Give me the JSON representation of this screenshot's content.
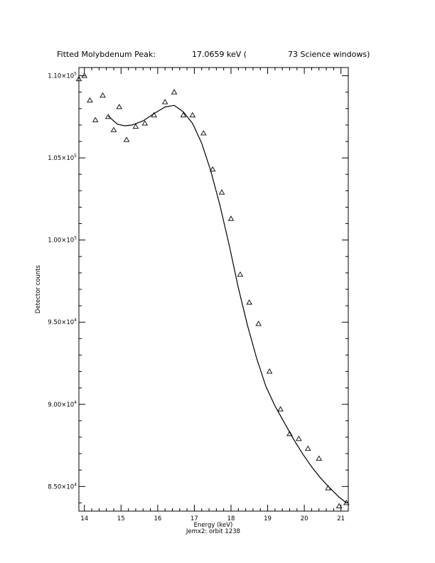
{
  "header": {
    "title_prefix": "Fitted Molybdenum Peak:",
    "title_energy": "17.0659 keV (",
    "title_windows": "73 Science windows)"
  },
  "footer": {
    "subtitle": "Jemx2: orbit 1238"
  },
  "chart_data": {
    "type": "scatter",
    "title": "Fitted Molybdenum Peak:  17.0659 keV (  73 Science windows)",
    "subtitle": "Jemx2: orbit 1238",
    "xlabel": "Energy (keV)",
    "ylabel": "Detector counts",
    "xlim": [
      13.85,
      21.2
    ],
    "ylim": [
      83500,
      110500
    ],
    "x_ticks": [
      14,
      15,
      16,
      17,
      18,
      19,
      20,
      21
    ],
    "x_tick_labels": [
      "14",
      "15",
      "16",
      "17",
      "18",
      "19",
      "20",
      "21"
    ],
    "y_ticks": [
      {
        "value": 85000,
        "mant": "8.50×10",
        "exp": "4"
      },
      {
        "value": 90000,
        "mant": "9.00×10",
        "exp": "4"
      },
      {
        "value": 95000,
        "mant": "9.50×10",
        "exp": "4"
      },
      {
        "value": 100000,
        "mant": "1.00×10",
        "exp": "5"
      },
      {
        "value": 105000,
        "mant": "1.05×10",
        "exp": "5"
      },
      {
        "value": 110000,
        "mant": "1.10×10",
        "exp": "5"
      }
    ],
    "grid": false,
    "series": [
      {
        "marker": "triangle",
        "x": [
          13.85,
          14.0,
          14.15,
          14.3,
          14.5,
          14.65,
          14.8,
          14.95,
          15.15,
          15.4,
          15.65,
          15.9,
          16.2,
          16.45,
          16.7,
          16.95,
          17.25,
          17.5,
          17.75,
          18.0,
          18.25,
          18.5,
          18.75,
          19.05,
          19.35,
          19.6,
          19.85,
          20.1,
          20.4,
          20.65,
          20.95,
          21.15
        ],
        "y": [
          109800,
          110000,
          108500,
          107300,
          108800,
          107500,
          106700,
          108100,
          106100,
          106900,
          107100,
          107600,
          108400,
          109000,
          107600,
          107600,
          106500,
          104300,
          102900,
          101300,
          97900,
          96200,
          94900,
          92000,
          89700,
          88200,
          87900,
          87300,
          86700,
          84900,
          83800,
          84000
        ]
      },
      {
        "style": "line",
        "x": [
          14.65,
          14.9,
          15.1,
          15.3,
          15.6,
          15.9,
          16.2,
          16.45,
          16.7,
          16.95,
          17.2,
          17.45,
          17.7,
          17.95,
          18.2,
          18.45,
          18.7,
          18.95,
          19.2,
          19.45,
          19.7,
          19.95,
          20.2,
          20.45,
          20.7,
          20.95,
          21.15
        ],
        "y": [
          107550,
          107050,
          106950,
          107000,
          107250,
          107700,
          108100,
          108200,
          107800,
          107100,
          105900,
          104200,
          102100,
          99700,
          97100,
          94800,
          92800,
          91100,
          89900,
          88900,
          87900,
          87000,
          86200,
          85500,
          84900,
          84350,
          84000
        ]
      }
    ]
  }
}
